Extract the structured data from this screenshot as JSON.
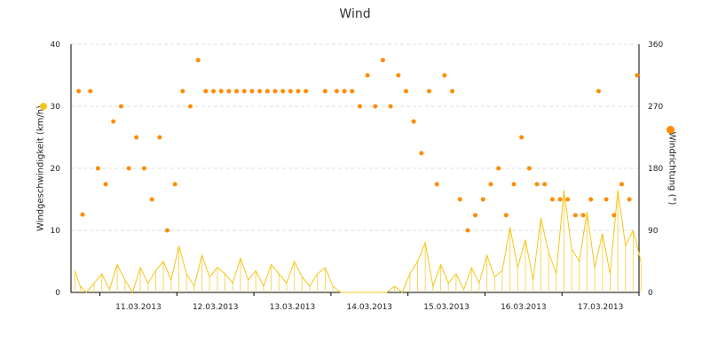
{
  "chart_data": {
    "type": "line",
    "title": "Wind",
    "ylabel_left": "Windgeschwindigkeit (km/h)",
    "ylabel_right": "Windrichtung (°)",
    "ylim_left": [
      0,
      40
    ],
    "yticks_left": [
      0,
      10,
      20,
      30,
      40
    ],
    "ylim_right": [
      0,
      360
    ],
    "yticks_right": [
      0,
      90,
      180,
      270,
      360
    ],
    "xlim": [
      "2013-03-10T15:00",
      "2013-03-18T00:00"
    ],
    "xtick_labels": [
      "11.03.2013",
      "12.03.2013",
      "13.03.2013",
      "14.03.2013",
      "15.03.2013",
      "16.03.2013",
      "17.03.2013"
    ],
    "grid": "horizontal dashed",
    "colors": {
      "speed": "#f5c518",
      "direction": "#ff8c00",
      "speed_legend": "#f5c518",
      "direction_legend": "#ff8c00"
    },
    "series": [
      {
        "key": "speed",
        "axis": "left",
        "style": "line",
        "note_x": "days since 2013-03-10 15:00",
        "x": [
          0.05,
          0.12,
          0.2,
          0.3,
          0.4,
          0.5,
          0.6,
          0.7,
          0.8,
          0.9,
          1.0,
          1.1,
          1.2,
          1.3,
          1.4,
          1.5,
          1.6,
          1.7,
          1.8,
          1.9,
          2.0,
          2.1,
          2.2,
          2.3,
          2.4,
          2.5,
          2.6,
          2.7,
          2.8,
          2.9,
          3.0,
          3.1,
          3.2,
          3.3,
          3.4,
          3.5,
          3.6,
          3.7,
          3.8,
          3.9,
          4.0,
          4.1,
          4.2,
          4.3,
          4.4,
          4.5,
          4.6,
          4.7,
          4.8,
          4.9,
          5.0,
          5.1,
          5.2,
          5.3,
          5.4,
          5.5,
          5.6,
          5.7,
          5.8,
          5.9,
          6.0,
          6.1,
          6.2,
          6.3,
          6.4,
          6.5,
          6.6,
          6.7,
          6.8,
          6.9,
          7.0,
          7.1,
          7.2,
          7.3,
          7.4
        ],
        "y": [
          3.5,
          1.0,
          0.0,
          1.5,
          3.0,
          0.5,
          4.5,
          2.0,
          0.0,
          4.0,
          1.5,
          3.5,
          5.0,
          2.0,
          7.5,
          3.0,
          1.0,
          6.0,
          2.5,
          4.0,
          3.0,
          1.5,
          5.5,
          2.0,
          3.5,
          1.0,
          4.5,
          3.0,
          1.5,
          5.0,
          2.5,
          1.0,
          3.0,
          4.0,
          1.0,
          0.0,
          0.0,
          0.0,
          0.0,
          0.0,
          0.0,
          0.0,
          1.0,
          0.0,
          3.0,
          5.0,
          8.0,
          1.0,
          4.5,
          1.5,
          3.0,
          0.5,
          4.0,
          1.5,
          6.0,
          2.5,
          3.5,
          10.5,
          4.0,
          8.5,
          2.0,
          12.0,
          6.5,
          3.0,
          16.5,
          7.0,
          5.0,
          13.0,
          4.0,
          9.5,
          3.0,
          16.5,
          7.5,
          10.0,
          5.0
        ]
      },
      {
        "key": "direction",
        "axis": "right",
        "style": "markers",
        "note_x": "days since 2013-03-10 15:00",
        "x": [
          0.1,
          0.15,
          0.25,
          0.35,
          0.45,
          0.55,
          0.65,
          0.75,
          0.85,
          0.95,
          1.05,
          1.15,
          1.25,
          1.35,
          1.45,
          1.55,
          1.65,
          1.75,
          1.85,
          1.95,
          2.05,
          2.15,
          2.25,
          2.35,
          2.45,
          2.55,
          2.65,
          2.75,
          2.85,
          2.95,
          3.05,
          3.3,
          3.45,
          3.55,
          3.65,
          3.75,
          3.85,
          3.95,
          4.05,
          4.15,
          4.25,
          4.35,
          4.45,
          4.55,
          4.65,
          4.75,
          4.85,
          4.95,
          5.05,
          5.15,
          5.25,
          5.35,
          5.45,
          5.55,
          5.65,
          5.75,
          5.85,
          5.95,
          6.05,
          6.15,
          6.25,
          6.35,
          6.45,
          6.55,
          6.65,
          6.75,
          6.85,
          6.95,
          7.05,
          7.15,
          7.25,
          7.35
        ],
        "y": [
          292,
          113,
          292,
          180,
          157,
          248,
          270,
          180,
          225,
          180,
          135,
          225,
          90,
          157,
          292,
          270,
          337,
          292,
          292,
          292,
          292,
          292,
          292,
          292,
          292,
          292,
          292,
          292,
          292,
          292,
          292,
          292,
          292,
          292,
          292,
          270,
          315,
          270,
          337,
          270,
          315,
          292,
          248,
          202,
          292,
          157,
          315,
          292,
          135,
          90,
          112,
          135,
          157,
          180,
          112,
          157,
          225,
          180,
          157,
          157,
          135,
          135,
          135,
          112,
          112,
          135,
          292,
          135,
          112,
          157,
          135,
          315
        ]
      }
    ]
  }
}
